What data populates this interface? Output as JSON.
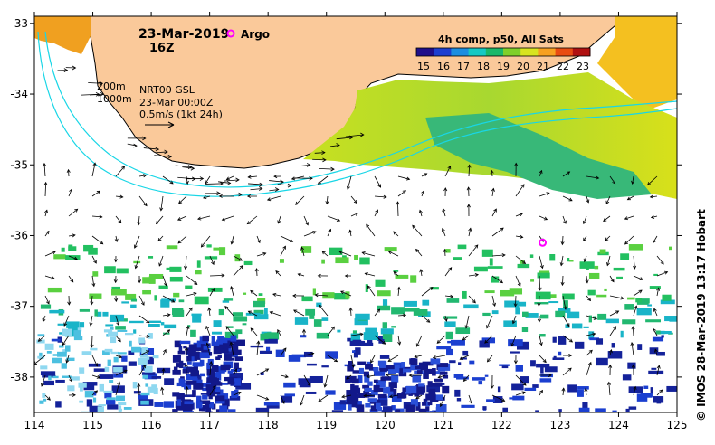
{
  "header": {
    "date": "23-Mar-2019",
    "time": "16Z",
    "argo_legend_label": "Argo"
  },
  "info": {
    "isobath_200": "200m",
    "isobath_1000": "1000m",
    "product": "NRT00 GSL",
    "product_date": "23-Mar 00:00Z",
    "scale_label": "0.5m/s (1kt 24h)"
  },
  "colorbar": {
    "title": "4h comp, p50, All Sats",
    "ticks": [
      "15",
      "16",
      "17",
      "18",
      "19",
      "20",
      "21",
      "22",
      "23"
    ],
    "colors": [
      "#1f0f8a",
      "#1d3fd0",
      "#1c8ee0",
      "#16c9c4",
      "#1ab86a",
      "#7fd02a",
      "#d8e420",
      "#f7a020",
      "#e84b12",
      "#b01010"
    ]
  },
  "axes": {
    "x_ticks": [
      "114",
      "115",
      "116",
      "117",
      "118",
      "119",
      "120",
      "121",
      "122",
      "123",
      "124",
      "125"
    ],
    "y_ticks": [
      "-33",
      "-34",
      "-35",
      "-36",
      "-37",
      "-38"
    ]
  },
  "argo_float": {
    "lon": 122.7,
    "lat": -36.1
  },
  "credit": "© IMOS 28-Mar-2019 13:17 Hobart"
}
